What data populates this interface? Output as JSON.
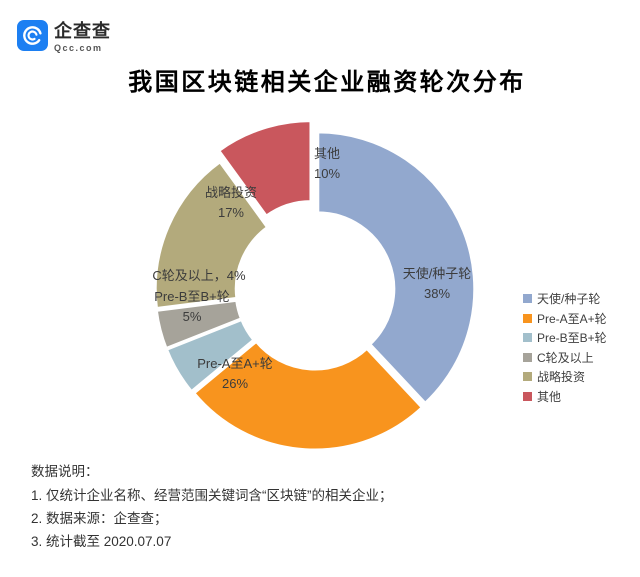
{
  "logo": {
    "brand": "企查查",
    "domain": "Qcc.com",
    "color": "#1C7FF2"
  },
  "title": "我国区块链相关企业融资轮次分布",
  "chart_data": {
    "type": "pie",
    "subtype": "donut",
    "title": "我国区块链相关企业融资轮次分布",
    "start_angle_deg": 0,
    "direction": "clockwise",
    "legend_position": "right",
    "categories": [
      "天使/种子轮",
      "Pre-A至A+轮",
      "Pre-B至B+轮",
      "C轮及以上",
      "战略投资",
      "其他"
    ],
    "values": [
      38,
      26,
      5,
      4,
      17,
      10
    ],
    "unit": "%",
    "slices": [
      {
        "label": "天使/种子轮",
        "value_pct": 38,
        "color": "#92A8CE",
        "label_line1": "天使/种子轮",
        "label_line2": "38%"
      },
      {
        "label": "Pre-A至A+轮",
        "value_pct": 26,
        "color": "#F8941E",
        "label_line1": "Pre-A至A+轮",
        "label_line2": "26%"
      },
      {
        "label": "Pre-B至B+轮",
        "value_pct": 5,
        "color": "#A2BFCB",
        "label_line1": "Pre-B至B+轮",
        "label_line2": "5%"
      },
      {
        "label": "C轮及以上",
        "value_pct": 4,
        "color": "#A6A39A",
        "label_line1": "C轮及以上，4%",
        "label_line2": ""
      },
      {
        "label": "战略投资",
        "value_pct": 17,
        "color": "#B3AA7C",
        "label_line1": "战略投资",
        "label_line2": "17%"
      },
      {
        "label": "其他",
        "value_pct": 10,
        "color": "#C9575D",
        "label_line1": "其他",
        "label_line2": "10%"
      }
    ]
  },
  "notes": {
    "heading": "数据说明：",
    "items": [
      "1. 仅统计企业名称、经营范围关键词含“区块链”的相关企业；",
      "2. 数据来源：企查查；",
      "3. 统计截至 2020.07.07"
    ]
  }
}
